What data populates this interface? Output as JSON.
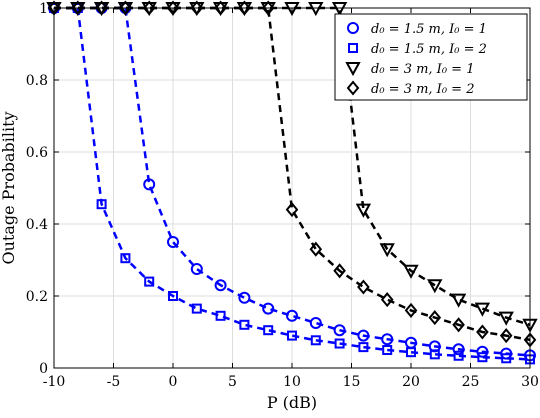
{
  "chart_data": {
    "type": "line",
    "xlabel": "P (dB)",
    "ylabel": "Outage Probability",
    "xlim": [
      -10,
      30
    ],
    "ylim": [
      0,
      1
    ],
    "xticks": [
      -10,
      -5,
      0,
      5,
      10,
      15,
      20,
      25,
      30
    ],
    "yticks": [
      0,
      0.2,
      0.4,
      0.6,
      0.8,
      1
    ],
    "xtick_labels": [
      "-10",
      "-5",
      "0",
      "5",
      "10",
      "15",
      "20",
      "25",
      "30"
    ],
    "ytick_labels": [
      "0",
      "0.2",
      "0.4",
      "0.6",
      "0.8",
      "1"
    ],
    "grid": true,
    "legend_position": "top-right",
    "series": [
      {
        "name": "d0 = 1.5 m, I0 = 1",
        "legend_label": "d₀ = 1.5 m, I₀ = 1",
        "color": "#0000ff",
        "marker": "circle",
        "line": "dashed",
        "x": [
          -10,
          -8,
          -6,
          -4,
          -2,
          0,
          2,
          4,
          6,
          8,
          10,
          12,
          14,
          16,
          18,
          20,
          22,
          24,
          26,
          28,
          30
        ],
        "y": [
          1,
          1,
          1,
          1,
          0.51,
          0.35,
          0.275,
          0.23,
          0.195,
          0.165,
          0.145,
          0.125,
          0.105,
          0.09,
          0.08,
          0.07,
          0.06,
          0.052,
          0.045,
          0.04,
          0.035
        ]
      },
      {
        "name": "d0 = 1.5 m, I0 = 2",
        "legend_label": "d₀ = 1.5 m, I₀ = 2",
        "color": "#0000ff",
        "marker": "square",
        "line": "dashed",
        "x": [
          -10,
          -8,
          -6,
          -4,
          -2,
          0,
          2,
          4,
          6,
          8,
          10,
          12,
          14,
          16,
          18,
          20,
          22,
          24,
          26,
          28,
          30
        ],
        "y": [
          1,
          1,
          0.455,
          0.305,
          0.24,
          0.2,
          0.165,
          0.145,
          0.12,
          0.105,
          0.09,
          0.077,
          0.068,
          0.058,
          0.05,
          0.044,
          0.038,
          0.034,
          0.03,
          0.027,
          0.024
        ]
      },
      {
        "name": "d0 = 3 m, I0 = 1",
        "legend_label": "d₀ = 3 m, I₀ = 1",
        "color": "#000000",
        "marker": "triangle-down",
        "line": "dashed",
        "x": [
          -10,
          -8,
          -6,
          -4,
          -2,
          0,
          2,
          4,
          6,
          8,
          10,
          12,
          14,
          16,
          18,
          20,
          22,
          24,
          26,
          28,
          30
        ],
        "y": [
          1,
          1,
          1,
          1,
          1,
          1,
          1,
          1,
          1,
          1,
          1,
          1,
          1,
          0.44,
          0.33,
          0.27,
          0.23,
          0.19,
          0.165,
          0.14,
          0.12
        ]
      },
      {
        "name": "d0 = 3 m, I0 = 2",
        "legend_label": "d₀ = 3 m, I₀ = 2",
        "color": "#000000",
        "marker": "diamond",
        "line": "dashed",
        "x": [
          -10,
          -8,
          -6,
          -4,
          -2,
          0,
          2,
          4,
          6,
          8,
          10,
          12,
          14,
          16,
          18,
          20,
          22,
          24,
          26,
          28,
          30
        ],
        "y": [
          1,
          1,
          1,
          1,
          1,
          1,
          1,
          1,
          1,
          1,
          0.44,
          0.33,
          0.27,
          0.225,
          0.19,
          0.16,
          0.14,
          0.12,
          0.1,
          0.09,
          0.078
        ]
      }
    ]
  }
}
